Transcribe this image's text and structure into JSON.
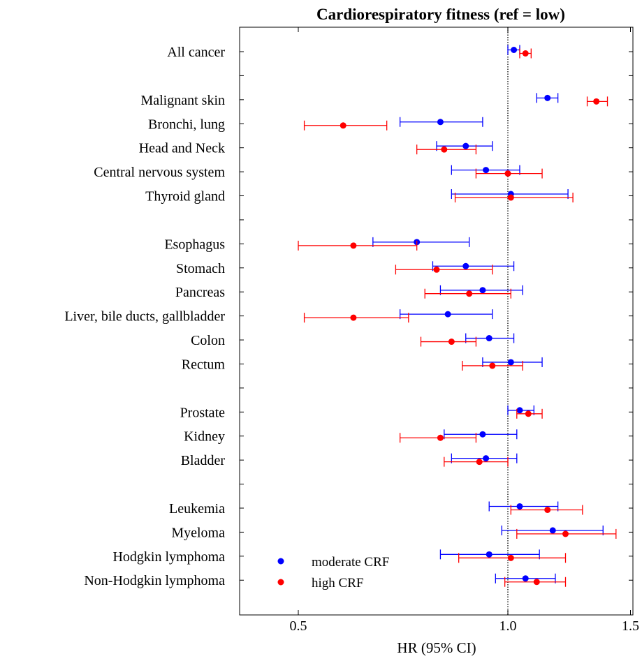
{
  "chart_data": {
    "type": "scatter",
    "subtype": "forest-plot",
    "title": "Cardiorespiratory fitness (ref = low)",
    "xlabel": "HR (95% CI)",
    "xscale": "log",
    "xlim": [
      0.4,
      1.5
    ],
    "xticks": [
      0.5,
      1.0,
      1.5
    ],
    "xtick_labels": [
      "0.5",
      "1.0",
      "1.5"
    ],
    "reference_line": 1.0,
    "legend_position": "bottom-left",
    "categories": [
      "All cancer",
      "Malignant skin",
      "Bronchi, lung",
      "Head and Neck",
      "Central nervous system",
      "Thyroid gland",
      "Esophagus",
      "Stomach",
      "Pancreas",
      "Liver, bile ducts, gallbladder",
      "Colon",
      "Rectum",
      "Prostate",
      "Kidney",
      "Bladder",
      "Leukemia",
      "Myeloma",
      "Hodgkin lymphoma",
      "Non-Hodgkin lymphoma"
    ],
    "groups": [
      [
        0
      ],
      [
        1,
        2,
        3,
        4,
        5
      ],
      [
        6,
        7,
        8,
        9,
        10,
        11
      ],
      [
        12,
        13,
        14
      ],
      [
        15,
        16,
        17,
        18
      ]
    ],
    "series": [
      {
        "name": "moderate CRF",
        "color": "#0000ff",
        "hr": [
          1.02,
          1.14,
          0.8,
          0.87,
          0.93,
          1.01,
          0.74,
          0.87,
          0.92,
          0.82,
          0.94,
          1.01,
          1.04,
          0.92,
          0.93,
          1.04,
          1.16,
          0.94,
          1.06
        ],
        "lower": [
          1.0,
          1.1,
          0.7,
          0.79,
          0.83,
          0.83,
          0.64,
          0.78,
          0.8,
          0.7,
          0.87,
          0.92,
          1.0,
          0.81,
          0.83,
          0.94,
          0.98,
          0.8,
          0.96
        ],
        "upper": [
          1.04,
          1.18,
          0.92,
          0.95,
          1.04,
          1.22,
          0.88,
          1.02,
          1.05,
          0.95,
          1.02,
          1.12,
          1.09,
          1.03,
          1.03,
          1.18,
          1.37,
          1.11,
          1.17
        ]
      },
      {
        "name": "high CRF",
        "color": "#ff0000",
        "hr": [
          1.06,
          1.34,
          0.58,
          0.81,
          1.0,
          1.01,
          0.6,
          0.79,
          0.88,
          0.6,
          0.83,
          0.95,
          1.07,
          0.8,
          0.91,
          1.14,
          1.21,
          1.01,
          1.1
        ],
        "lower": [
          1.04,
          1.3,
          0.51,
          0.74,
          0.9,
          0.84,
          0.5,
          0.69,
          0.76,
          0.51,
          0.75,
          0.86,
          1.03,
          0.7,
          0.81,
          1.01,
          1.03,
          0.85,
          0.99
        ],
        "upper": [
          1.08,
          1.39,
          0.67,
          0.9,
          1.12,
          1.24,
          0.74,
          0.95,
          1.01,
          0.72,
          0.9,
          1.05,
          1.12,
          0.9,
          1.0,
          1.28,
          1.43,
          1.21,
          1.21
        ]
      }
    ]
  }
}
